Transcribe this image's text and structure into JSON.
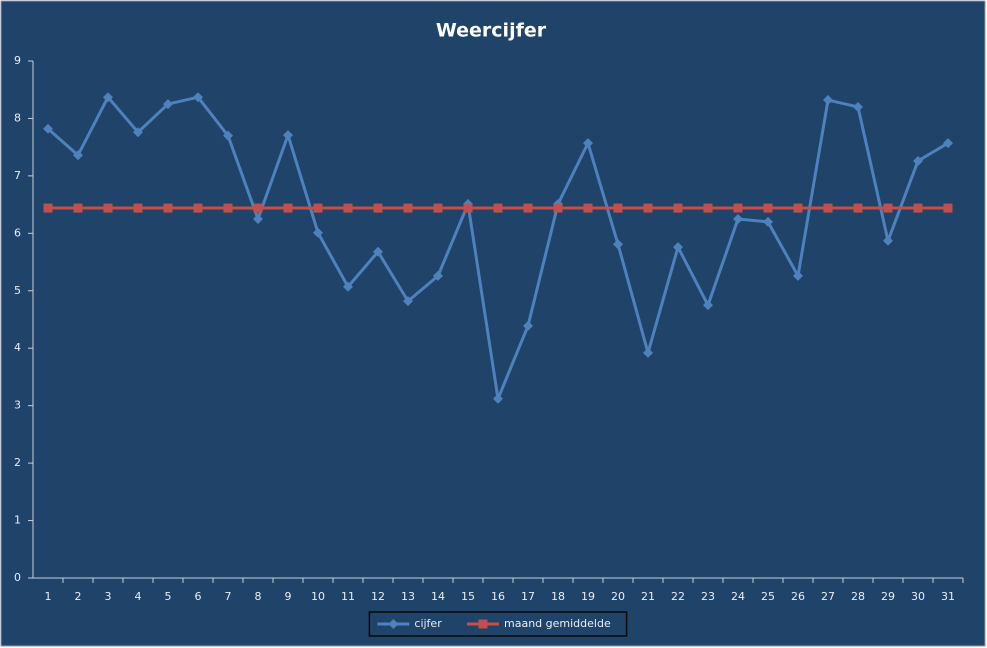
{
  "chart_data": {
    "type": "line",
    "title": "Weercijfer",
    "categories": [
      "1",
      "2",
      "3",
      "4",
      "5",
      "6",
      "7",
      "8",
      "9",
      "10",
      "11",
      "12",
      "13",
      "14",
      "15",
      "16",
      "17",
      "18",
      "19",
      "20",
      "21",
      "22",
      "23",
      "24",
      "25",
      "26",
      "27",
      "28",
      "29",
      "30",
      "31"
    ],
    "series": [
      {
        "name": "cijfer",
        "color": "#4f81bd",
        "marker": "diamond",
        "values": [
          7.82,
          7.36,
          8.37,
          7.76,
          8.25,
          8.37,
          7.7,
          6.25,
          7.71,
          6.01,
          5.07,
          5.68,
          4.82,
          5.26,
          6.51,
          3.12,
          4.39,
          6.51,
          7.57,
          5.81,
          3.92,
          5.76,
          4.75,
          6.25,
          6.2,
          5.26,
          8.32,
          8.2,
          5.87,
          7.26,
          7.57
        ]
      },
      {
        "name": "maand gemiddelde",
        "color": "#c0504d",
        "marker": "square",
        "values": [
          6.44,
          6.44,
          6.44,
          6.44,
          6.44,
          6.44,
          6.44,
          6.44,
          6.44,
          6.44,
          6.44,
          6.44,
          6.44,
          6.44,
          6.44,
          6.44,
          6.44,
          6.44,
          6.44,
          6.44,
          6.44,
          6.44,
          6.44,
          6.44,
          6.44,
          6.44,
          6.44,
          6.44,
          6.44,
          6.44,
          6.44
        ]
      }
    ],
    "ylim": [
      0,
      9
    ],
    "yticks": [
      0,
      1,
      2,
      3,
      4,
      5,
      6,
      7,
      8,
      9
    ],
    "legend": "bottom"
  }
}
